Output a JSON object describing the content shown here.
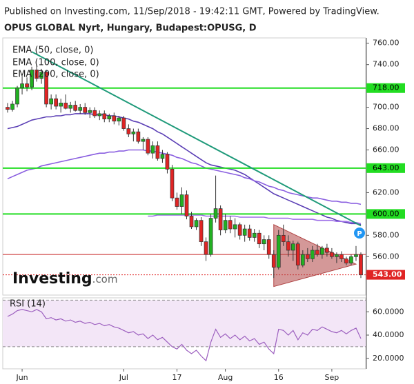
{
  "chart_data": {
    "type": "candlestick",
    "source": "Published on Investing.com, 11/Sep/2018 - 19:42:11 GMT, Powered by TradingView.",
    "title": "OPUS GLOBAL Nyrt, Hungary, Budapest:OPUSG, D",
    "logo": "Investing",
    "logo_suffix": ".com",
    "marker": "P",
    "up_color": "#22b022",
    "down_color": "#e02424",
    "xlim": [
      -1,
      74
    ],
    "xticks": [
      {
        "value": 3,
        "label": "Jun"
      },
      {
        "value": 24,
        "label": "Jul"
      },
      {
        "value": 35,
        "label": "17"
      },
      {
        "value": 45,
        "label": "Aug"
      },
      {
        "value": 56,
        "label": "16"
      },
      {
        "value": 67,
        "label": "Sep"
      }
    ],
    "ylim": [
      524,
      765
    ],
    "yticks": [
      {
        "value": 560,
        "label": "560.00"
      },
      {
        "value": 580,
        "label": "580.00"
      },
      {
        "value": 620,
        "label": "620.00"
      },
      {
        "value": 660,
        "label": "660.00"
      },
      {
        "value": 680,
        "label": "680.00"
      },
      {
        "value": 700,
        "label": "700.00"
      },
      {
        "value": 740,
        "label": "740.00"
      },
      {
        "value": 760,
        "label": "760.00"
      }
    ],
    "candles": [
      [
        700,
        704,
        695,
        698
      ],
      [
        698,
        706,
        696,
        703
      ],
      [
        703,
        720,
        700,
        718
      ],
      [
        718,
        730,
        712,
        722
      ],
      [
        722,
        728,
        715,
        719
      ],
      [
        719,
        738,
        716,
        735
      ],
      [
        735,
        740,
        724,
        727
      ],
      [
        727,
        736,
        722,
        733
      ],
      [
        733,
        735,
        700,
        703
      ],
      [
        703,
        712,
        698,
        708
      ],
      [
        708,
        712,
        698,
        701
      ],
      [
        701,
        708,
        695,
        704
      ],
      [
        704,
        712,
        698,
        699
      ],
      [
        699,
        705,
        695,
        702
      ],
      [
        702,
        706,
        696,
        697
      ],
      [
        697,
        703,
        694,
        700
      ],
      [
        700,
        704,
        693,
        695
      ],
      [
        695,
        700,
        690,
        697
      ],
      [
        697,
        700,
        690,
        692
      ],
      [
        692,
        697,
        688,
        694
      ],
      [
        694,
        697,
        686,
        689
      ],
      [
        689,
        694,
        686,
        692
      ],
      [
        692,
        695,
        684,
        687
      ],
      [
        687,
        692,
        683,
        690
      ],
      [
        690,
        692,
        678,
        680
      ],
      [
        680,
        684,
        672,
        675
      ],
      [
        675,
        680,
        668,
        677
      ],
      [
        677,
        680,
        666,
        668
      ],
      [
        668,
        672,
        660,
        670
      ],
      [
        670,
        672,
        655,
        657
      ],
      [
        657,
        668,
        652,
        664
      ],
      [
        664,
        668,
        650,
        652
      ],
      [
        652,
        660,
        648,
        656
      ],
      [
        656,
        658,
        638,
        642
      ],
      [
        642,
        646,
        612,
        615
      ],
      [
        615,
        620,
        604,
        607
      ],
      [
        607,
        625,
        600,
        618
      ],
      [
        618,
        622,
        595,
        598
      ],
      [
        598,
        602,
        586,
        588
      ],
      [
        588,
        596,
        585,
        594
      ],
      [
        594,
        597,
        570,
        574
      ],
      [
        574,
        578,
        556,
        562
      ],
      [
        562,
        600,
        560,
        596
      ],
      [
        596,
        636,
        592,
        605
      ],
      [
        605,
        608,
        580,
        585
      ],
      [
        585,
        600,
        582,
        594
      ],
      [
        594,
        598,
        582,
        586
      ],
      [
        586,
        596,
        578,
        590
      ],
      [
        590,
        592,
        576,
        580
      ],
      [
        580,
        590,
        574,
        586
      ],
      [
        586,
        590,
        575,
        578
      ],
      [
        578,
        586,
        574,
        582
      ],
      [
        582,
        585,
        568,
        572
      ],
      [
        572,
        580,
        566,
        576
      ],
      [
        576,
        580,
        558,
        562
      ],
      [
        562,
        566,
        540,
        550
      ],
      [
        550,
        585,
        548,
        580
      ],
      [
        580,
        590,
        570,
        574
      ],
      [
        574,
        580,
        560,
        566
      ],
      [
        566,
        575,
        556,
        572
      ],
      [
        572,
        574,
        548,
        552
      ],
      [
        552,
        566,
        550,
        562
      ],
      [
        562,
        568,
        555,
        558
      ],
      [
        558,
        570,
        555,
        566
      ],
      [
        566,
        572,
        560,
        562
      ],
      [
        562,
        570,
        558,
        568
      ],
      [
        568,
        572,
        560,
        564
      ],
      [
        564,
        568,
        558,
        560
      ],
      [
        560,
        564,
        554,
        562
      ],
      [
        562,
        565,
        555,
        558
      ],
      [
        558,
        560,
        552,
        554
      ],
      [
        554,
        562,
        552,
        560
      ],
      [
        560,
        570,
        556,
        562
      ],
      [
        562,
        564,
        540,
        543
      ]
    ],
    "series": [
      {
        "name": "EMA (50, close, 0)",
        "color": "#5b3fb5",
        "values": [
          680,
          681,
          682,
          684,
          686,
          688,
          689,
          690,
          691,
          691,
          692,
          692,
          693,
          693,
          694,
          694,
          694,
          694,
          693,
          693,
          693,
          692,
          692,
          691,
          690,
          689,
          687,
          686,
          684,
          682,
          680,
          677,
          675,
          672,
          669,
          666,
          663,
          660,
          657,
          654,
          651,
          648,
          646,
          645,
          644,
          643,
          642,
          641,
          639,
          637,
          634,
          631,
          628,
          625,
          622,
          619,
          617,
          615,
          613,
          611,
          609,
          607,
          605,
          603,
          601,
          599,
          597,
          596,
          594,
          593,
          592,
          591,
          591,
          590
        ]
      },
      {
        "name": "EMA (100, close, 0)",
        "color": "#8a5fe0",
        "values": [
          633,
          635,
          637,
          639,
          641,
          642,
          643,
          645,
          646,
          647,
          648,
          649,
          650,
          651,
          652,
          653,
          654,
          655,
          656,
          657,
          657,
          658,
          658,
          659,
          659,
          660,
          660,
          660,
          660,
          659,
          659,
          658,
          657,
          656,
          655,
          653,
          652,
          650,
          648,
          647,
          645,
          643,
          642,
          641,
          640,
          639,
          638,
          637,
          636,
          634,
          633,
          631,
          630,
          628,
          626,
          625,
          623,
          622,
          620,
          619,
          618,
          617,
          616,
          615,
          615,
          614,
          613,
          612,
          612,
          611,
          611,
          610,
          610,
          609
        ]
      },
      {
        "name": "EMA (200, close, 0)",
        "color": "#9d6fe8",
        "values": [
          null,
          null,
          null,
          null,
          null,
          null,
          null,
          null,
          null,
          null,
          null,
          null,
          null,
          null,
          null,
          null,
          null,
          null,
          null,
          null,
          null,
          null,
          null,
          null,
          null,
          null,
          null,
          null,
          null,
          598,
          598,
          599,
          599,
          599,
          599,
          599,
          599,
          599,
          599,
          599,
          599,
          598,
          598,
          598,
          598,
          598,
          598,
          598,
          597,
          597,
          597,
          597,
          597,
          597,
          596,
          596,
          596,
          596,
          596,
          595,
          595,
          595,
          595,
          595,
          594,
          594,
          594,
          594,
          593,
          593,
          593,
          592,
          592,
          591
        ]
      }
    ],
    "hlines": [
      {
        "value": 718,
        "label": "718.00",
        "color": "#22dd22"
      },
      {
        "value": 643,
        "label": "643.00",
        "color": "#22dd22"
      },
      {
        "value": 600,
        "label": "600.00",
        "color": "#22dd22"
      },
      {
        "value": 562,
        "color": "#c62828"
      },
      {
        "value": 543,
        "label": "543.00",
        "color": "#e02424",
        "dashed": true
      }
    ],
    "trendline": {
      "color": "#1f9a7a",
      "x": [
        5,
        73
      ],
      "y": [
        752,
        589
      ]
    },
    "triangle": {
      "color": "#b04444",
      "x": [
        55,
        72,
        55
      ],
      "y": [
        590,
        553,
        532
      ]
    },
    "rsi": {
      "name": "RSI (14)",
      "color": "#9c5fbf",
      "ylim": [
        11,
        72
      ],
      "yticks": [
        {
          "value": 20,
          "label": "20.0000"
        },
        {
          "value": 40,
          "label": "40.0000"
        },
        {
          "value": 60,
          "label": "60.0000"
        }
      ],
      "bands": [
        30,
        70
      ],
      "values": [
        56,
        58,
        61,
        62,
        61,
        60,
        62,
        60,
        54,
        55,
        53,
        54,
        52,
        53,
        51,
        52,
        50,
        51,
        49,
        50,
        48,
        49,
        47,
        46,
        44,
        42,
        43,
        40,
        41,
        37,
        40,
        36,
        38,
        34,
        30,
        28,
        32,
        27,
        24,
        27,
        22,
        18,
        34,
        45,
        38,
        41,
        37,
        40,
        36,
        39,
        35,
        37,
        32,
        34,
        28,
        24,
        45,
        44,
        40,
        44,
        36,
        42,
        40,
        45,
        44,
        47,
        45,
        43,
        42,
        44,
        41,
        44,
        46,
        37
      ]
    }
  }
}
